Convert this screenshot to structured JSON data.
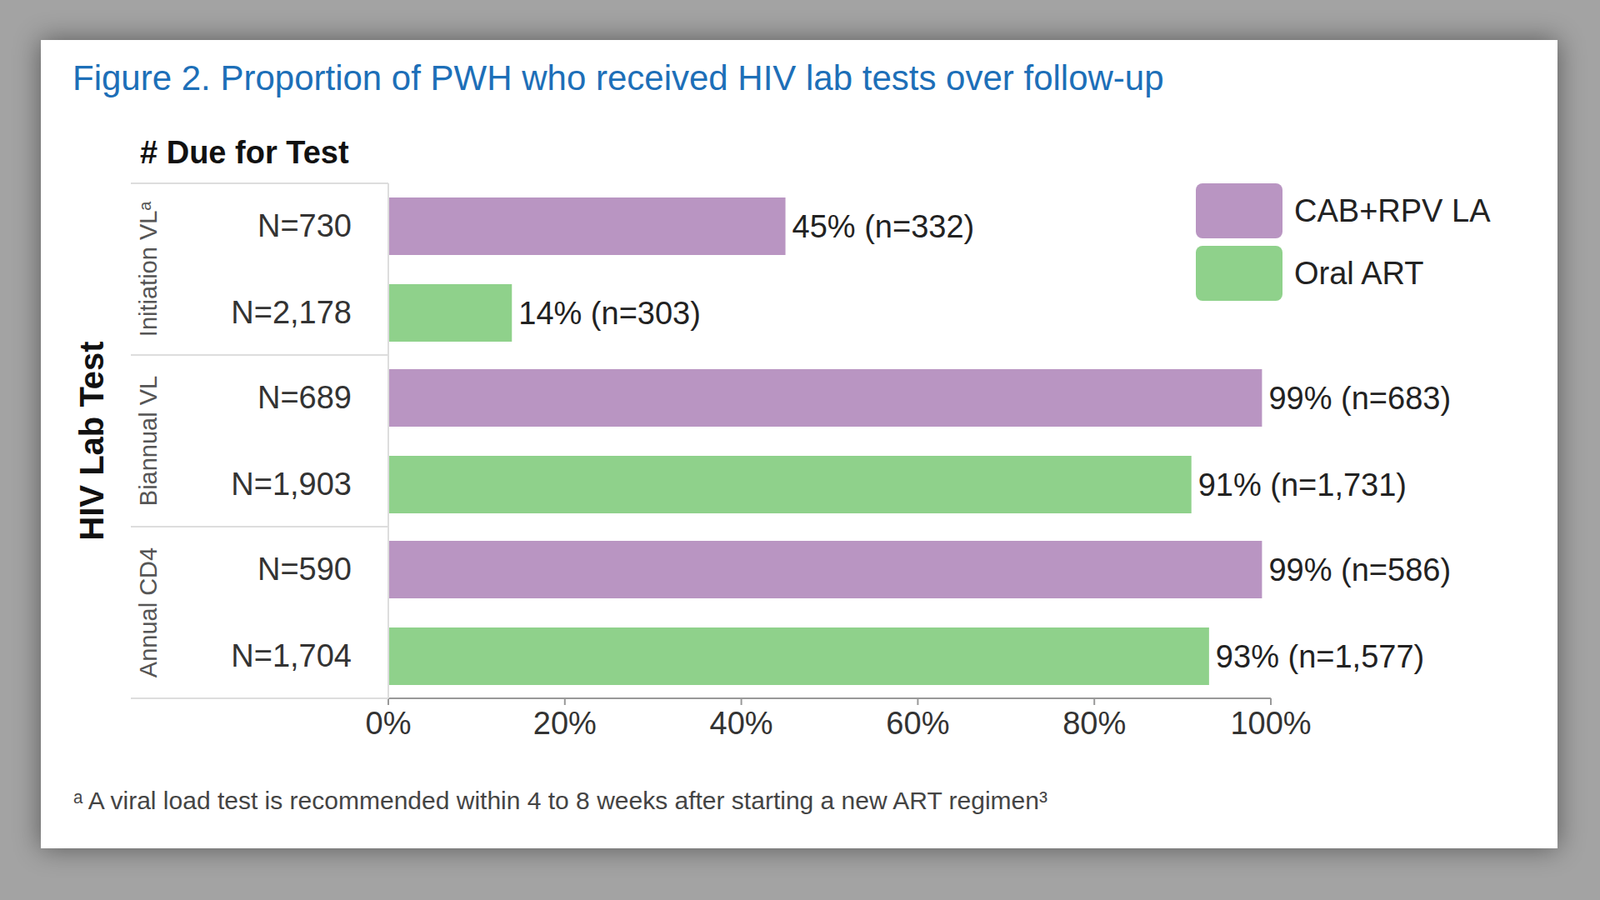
{
  "chart_data": {
    "type": "bar",
    "orientation": "horizontal",
    "title": "Figure 2. Proportion of PWH who received HIV lab tests over follow-up",
    "column_header": "# Due for Test",
    "y_label": "HIV Lab Test",
    "footnote": "ᵃ A viral load test is recommended within 4 to 8 weeks after starting a new ART regimen³",
    "categories": [
      "Initiation VLᵃ",
      "Biannual VL",
      "Annual CD4"
    ],
    "series": [
      {
        "name": "CAB+RPV LA",
        "color": "#b995c2",
        "values": [
          45,
          99,
          99
        ],
        "value_labels": [
          "45% (n=332)",
          "99% (n=683)",
          "99% (n=586)"
        ],
        "due_labels": [
          "N=730",
          "N=689",
          "N=590"
        ]
      },
      {
        "name": "Oral ART",
        "color": "#8fd18b",
        "values": [
          14,
          91,
          93
        ],
        "value_labels": [
          "14% (n=303)",
          "91% (n=1,731)",
          "93% (n=1,577)"
        ],
        "due_labels": [
          "N=2,178",
          "N=1,903",
          "N=1,704"
        ]
      }
    ],
    "xlim": [
      0,
      100
    ],
    "xticks": [
      {
        "value": 0,
        "label": "0%"
      },
      {
        "value": 20,
        "label": "20%"
      },
      {
        "value": 40,
        "label": "40%"
      },
      {
        "value": 60,
        "label": "60%"
      },
      {
        "value": 80,
        "label": "80%"
      },
      {
        "value": 100,
        "label": "100%"
      }
    ],
    "grid": false,
    "legend": "upper right",
    "data_labels": true
  }
}
